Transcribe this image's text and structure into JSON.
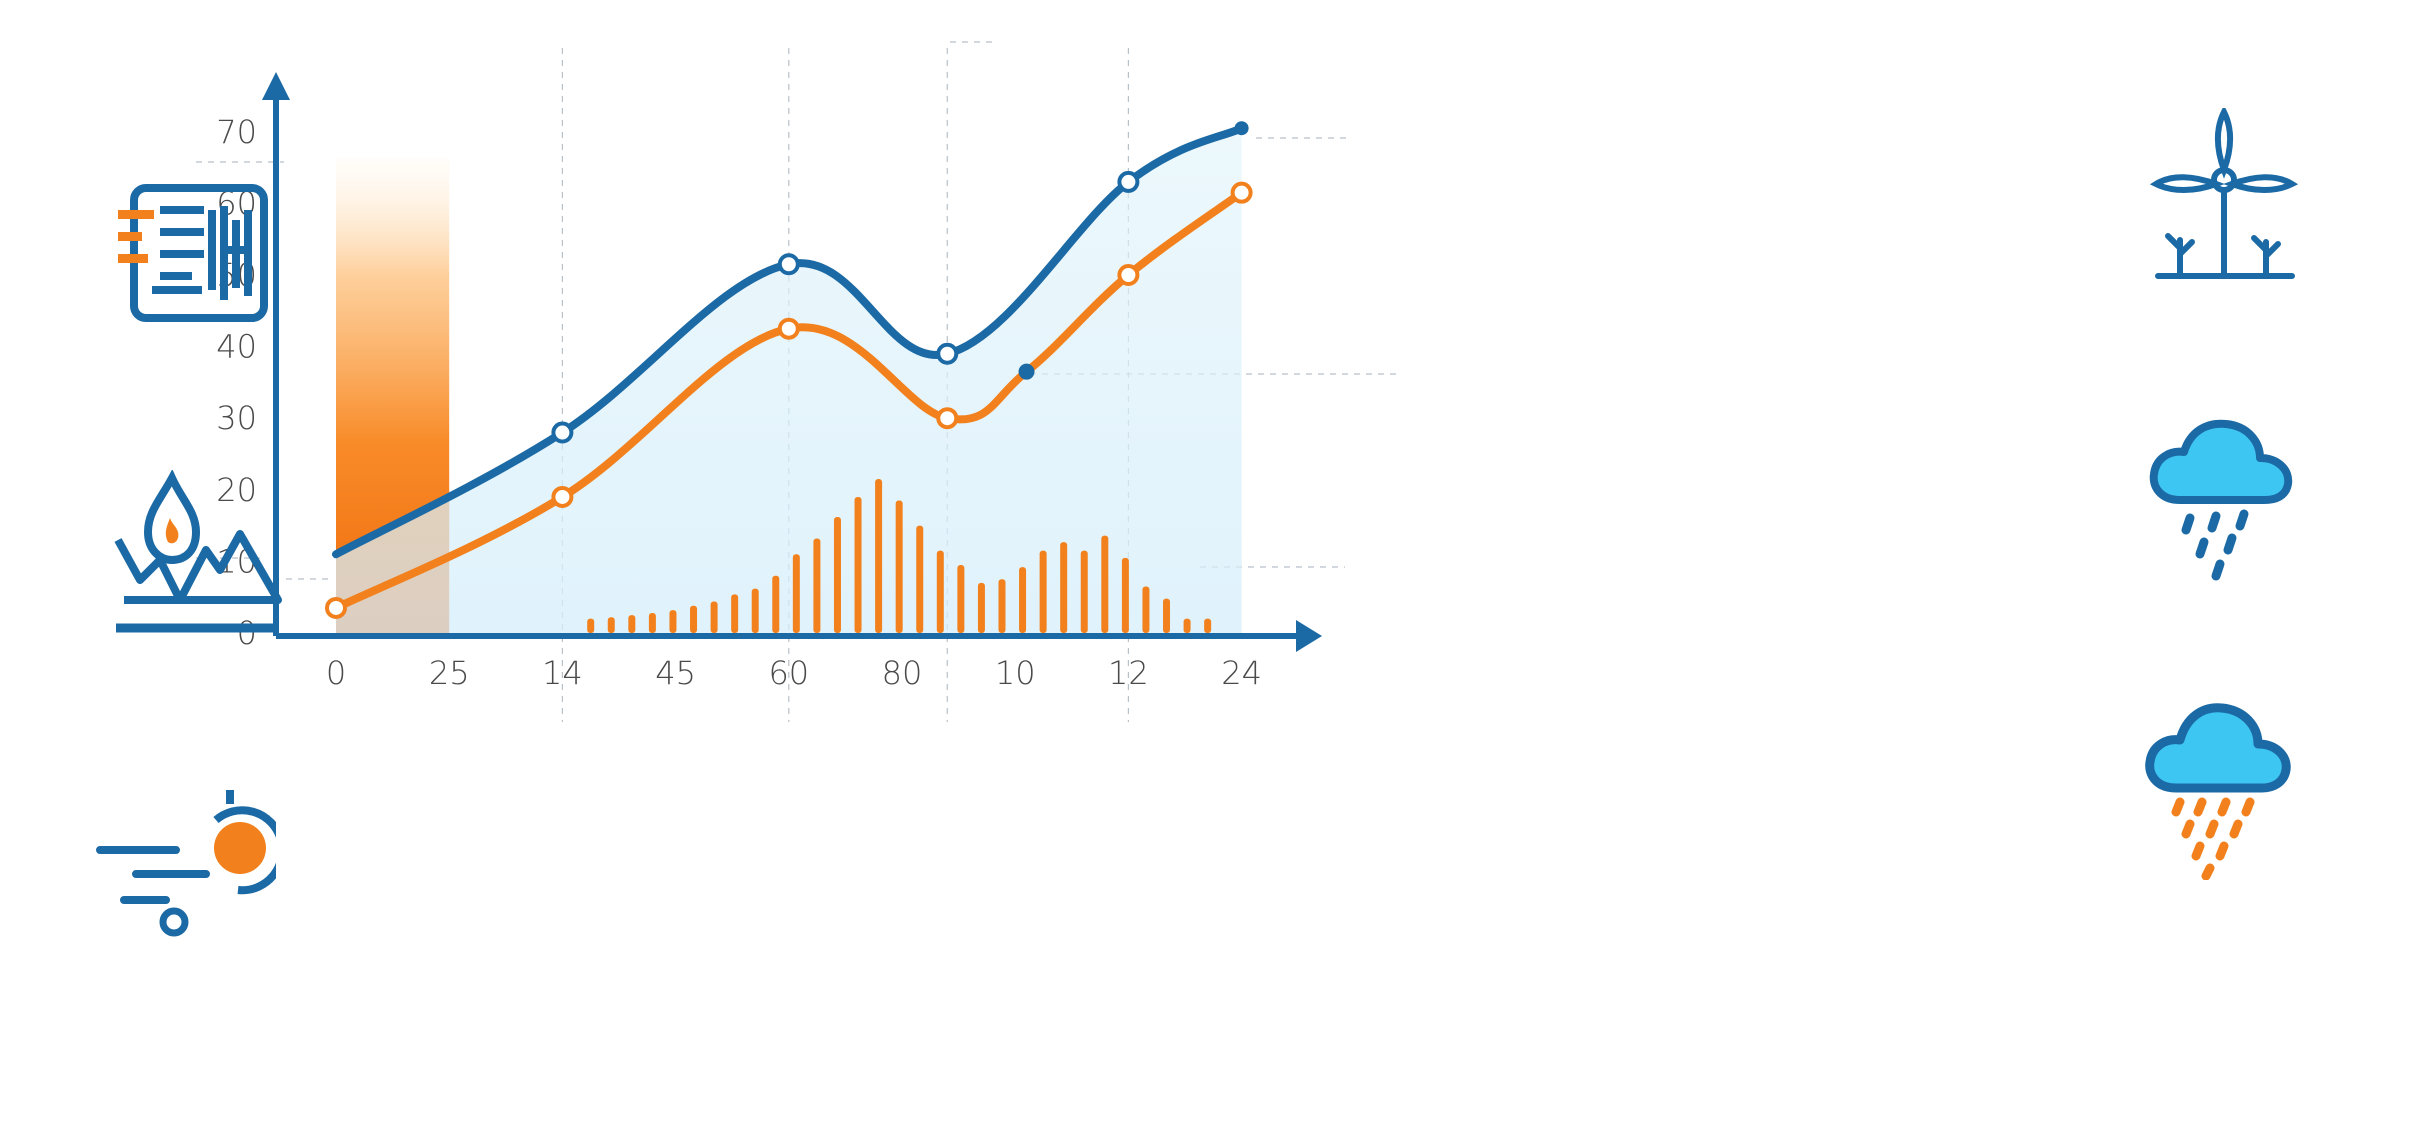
{
  "chart_data": {
    "type": "line",
    "title": "",
    "xlabel": "",
    "ylabel": "",
    "x_tick_labels": [
      "0",
      "25",
      "14",
      "45",
      "60",
      "80",
      "10",
      "12",
      "24"
    ],
    "y_tick_labels": [
      "0",
      "10",
      "20",
      "30",
      "40",
      "50",
      "60",
      "70"
    ],
    "ylim": [
      0,
      72
    ],
    "grid": false,
    "legend": "none",
    "series": [
      {
        "color": "#1b6aa5",
        "points": [
          {
            "xi": 0,
            "y": 11
          },
          {
            "xi": 2,
            "y": 28
          },
          {
            "xi": 4,
            "y": 51.5
          },
          {
            "xi": 5.4,
            "y": 39
          },
          {
            "xi": 7,
            "y": 63
          },
          {
            "xi": 8,
            "y": 70.5
          }
        ],
        "markers": [
          {
            "xi": 2,
            "y": 28,
            "style": "hollow"
          },
          {
            "xi": 4,
            "y": 51.5,
            "style": "hollow"
          },
          {
            "xi": 5.4,
            "y": 39,
            "style": "hollow"
          },
          {
            "xi": 7,
            "y": 63,
            "style": "hollow"
          },
          {
            "xi": 8,
            "y": 70.5,
            "style": "filled"
          }
        ]
      },
      {
        "color": "#f2811d",
        "points": [
          {
            "xi": 0,
            "y": 3.5
          },
          {
            "xi": 2,
            "y": 19
          },
          {
            "xi": 4,
            "y": 42.5
          },
          {
            "xi": 5.4,
            "y": 30
          },
          {
            "xi": 6.1,
            "y": 36.5
          },
          {
            "xi": 7,
            "y": 50
          },
          {
            "xi": 8,
            "y": 61.5
          }
        ],
        "markers": [
          {
            "xi": 0,
            "y": 3.5,
            "style": "hollow"
          },
          {
            "xi": 2,
            "y": 19,
            "style": "hollow"
          },
          {
            "xi": 4,
            "y": 42.5,
            "style": "hollow"
          },
          {
            "xi": 5.4,
            "y": 30,
            "style": "hollow"
          },
          {
            "xi": 6.1,
            "y": 36.5,
            "style": "filled-blue"
          },
          {
            "xi": 7,
            "y": 50,
            "style": "hollow"
          },
          {
            "xi": 8,
            "y": 61.5,
            "style": "hollow"
          }
        ]
      }
    ],
    "highlight_band": {
      "from_xi": 0,
      "to_xi": 1,
      "top_y": 72,
      "color": "#f47a10"
    },
    "bars": {
      "color": "#f2811d",
      "x_start_xi": 2.25,
      "x_end_xi": 7.7,
      "values": [
        2,
        2.2,
        2.5,
        2.8,
        3.2,
        3.8,
        4.4,
        5.4,
        6.2,
        8,
        11,
        13.2,
        16.2,
        19,
        21.5,
        18.5,
        15,
        11.5,
        9.5,
        7,
        7.5,
        9.2,
        11.5,
        12.7,
        11.5,
        13.6,
        10.5,
        6.5,
        4.8,
        2,
        2
      ]
    },
    "colors": {
      "axis": "#1b6aa5",
      "blue": "#1b6aa5",
      "orange": "#f2811d",
      "cloud": "#3ec6f2"
    }
  },
  "icons": {
    "left": [
      "solar-panel-icon",
      "fire-mountain-icon",
      "wind-sun-icon"
    ],
    "right": [
      "wind-turbine-icon",
      "rain-cloud-blue-icon",
      "rain-cloud-orange-icon"
    ]
  }
}
